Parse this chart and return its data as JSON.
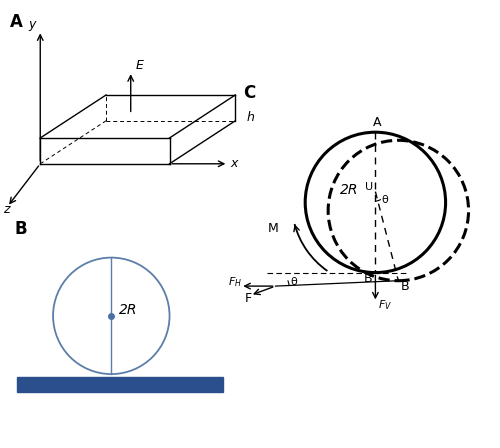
{
  "fig_width": 5.0,
  "fig_height": 4.48,
  "dpi": 100,
  "panel_A_label": "A",
  "panel_B_label": "B",
  "panel_C_label": "C",
  "circle_color": "#5b7faa",
  "dot_color": "#4a6fa5",
  "bar_color": "#2b4f8c",
  "label_2R_B": "2R",
  "label_2R_C": "2R",
  "label_E": "E",
  "label_h": "h",
  "label_x": "x",
  "label_y": "y",
  "label_z": "z",
  "label_A": "A",
  "label_B": "B",
  "label_U": "U",
  "label_M": "M",
  "label_FH": "$F_H$",
  "label_FV": "$F_V$",
  "label_F": "F",
  "label_theta": "θ",
  "label_theta2": "θ"
}
